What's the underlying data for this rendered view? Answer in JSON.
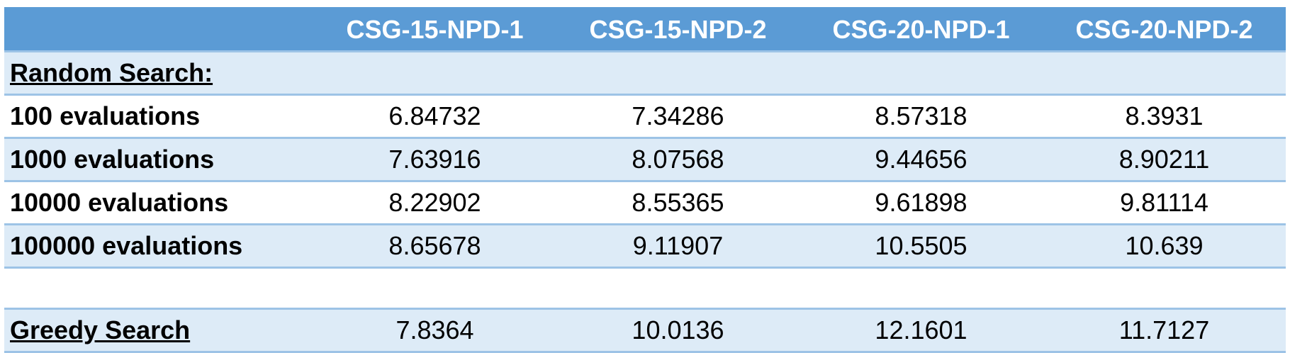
{
  "columns": [
    "",
    "CSG-15-NPD-1",
    "CSG-15-NPD-2",
    "CSG-20-NPD-1",
    "CSG-20-NPD-2"
  ],
  "sections": {
    "random_search_label": "Random Search:",
    "greedy_search_label": "Greedy Search"
  },
  "random_rows": [
    {
      "label": "100 evaluations",
      "values": [
        "6.84732",
        "7.34286",
        "8.57318",
        "8.3931"
      ]
    },
    {
      "label": "1000 evaluations",
      "values": [
        "7.63916",
        "8.07568",
        "9.44656",
        "8.90211"
      ]
    },
    {
      "label": "10000 evaluations",
      "values": [
        "8.22902",
        "8.55365",
        "9.61898",
        "9.81114"
      ]
    },
    {
      "label": "100000 evaluations",
      "values": [
        "8.65678",
        "9.11907",
        "10.5505",
        "10.639"
      ]
    }
  ],
  "greedy_values": [
    "7.8364",
    "10.0136",
    "12.1601",
    "11.7127"
  ],
  "colors": {
    "header_bg": "#5b9bd5",
    "band_bg": "#ddebf7",
    "border": "#9dc3e6"
  }
}
